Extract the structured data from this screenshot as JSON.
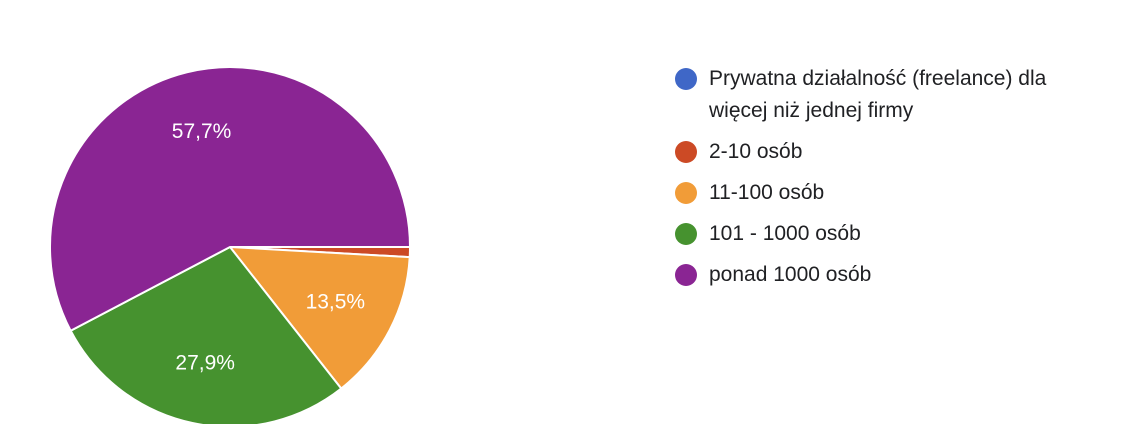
{
  "chart_data": {
    "type": "pie",
    "categories": [
      "Prywatna działalność (freelance) dla więcej niż jednej firmy",
      "2-10 osób",
      "11-100 osób",
      "101 - 1000 osób",
      "ponad 1000 osób"
    ],
    "values": [
      0,
      0.9,
      13.5,
      27.9,
      57.7
    ],
    "data_labels": [
      "",
      "",
      "13,5%",
      "27,9%",
      "57,7%"
    ],
    "colors": [
      "#3f67c7",
      "#cc4a25",
      "#f19c38",
      "#46922f",
      "#8a2593"
    ],
    "legend_position": "right",
    "start_angle": "3 o'clock",
    "direction": "clockwise"
  }
}
